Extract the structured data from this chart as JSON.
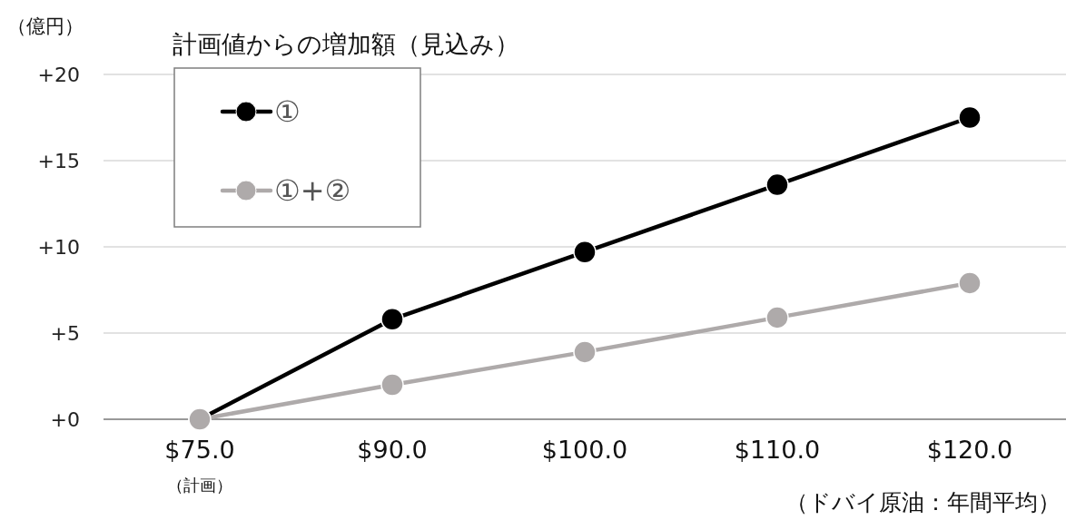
{
  "chart_data": {
    "type": "line",
    "title": "計画値からの増加額（見込み）",
    "ylabel": "（億円）",
    "xlabel": "（ドバイ原油：年間平均）",
    "categories": [
      "$75.0\n（計画）",
      "$90.0",
      "$100.0",
      "$110.0",
      "$120.0"
    ],
    "series": [
      {
        "name": "①",
        "color": "#000000",
        "values": [
          0,
          5.8,
          9.7,
          13.6,
          17.5
        ]
      },
      {
        "name": "①+②",
        "color": "#aeaaaa",
        "values": [
          0,
          2.0,
          3.9,
          5.9,
          7.9
        ]
      }
    ],
    "ylim": [
      0,
      20
    ],
    "yticks": [
      {
        "value": 0,
        "label": "+0"
      },
      {
        "value": 5,
        "label": "+5"
      },
      {
        "value": 10,
        "label": "+10"
      },
      {
        "value": 15,
        "label": "+15"
      },
      {
        "value": 20,
        "label": "+20"
      }
    ],
    "grid": "y",
    "legend": "top left",
    "marker": "circle",
    "line_style": "solid"
  }
}
